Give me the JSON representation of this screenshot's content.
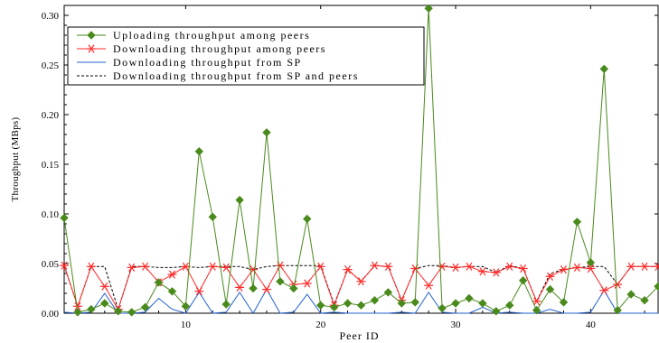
{
  "chart_data": {
    "type": "line",
    "title": "",
    "xlabel": "Peer ID",
    "ylabel": "Throughput (MBps)",
    "xlim": [
      1,
      45
    ],
    "ylim": [
      0,
      0.31
    ],
    "x_ticks": [
      10,
      20,
      30,
      40
    ],
    "y_ticks": [
      0.0,
      0.05,
      0.1,
      0.15,
      0.2,
      0.25,
      0.3
    ],
    "y_tick_labels": [
      "0.00",
      "0.05",
      "0.10",
      "0.15",
      "0.20",
      "0.25",
      "0.30"
    ],
    "legend_position": "top-left",
    "grid": false,
    "x": [
      1,
      2,
      3,
      4,
      5,
      6,
      7,
      8,
      9,
      10,
      11,
      12,
      13,
      14,
      15,
      16,
      17,
      18,
      19,
      20,
      21,
      22,
      23,
      24,
      25,
      26,
      27,
      28,
      29,
      30,
      31,
      32,
      33,
      34,
      35,
      36,
      37,
      38,
      39,
      40,
      41,
      42,
      43,
      44,
      45
    ],
    "series": [
      {
        "name": "Uploading throughput among peers",
        "color": "#4a8a1c",
        "style": "solid",
        "marker": "diamond",
        "values": [
          0.096,
          0.001,
          0.004,
          0.01,
          0.002,
          0.001,
          0.006,
          0.031,
          0.022,
          0.007,
          0.163,
          0.097,
          0.009,
          0.114,
          0.025,
          0.182,
          0.032,
          0.025,
          0.095,
          0.008,
          0.006,
          0.01,
          0.008,
          0.013,
          0.021,
          0.01,
          0.011,
          0.307,
          0.005,
          0.01,
          0.015,
          0.01,
          0.002,
          0.008,
          0.033,
          0.003,
          0.024,
          0.011,
          0.092,
          0.051,
          0.246,
          0.003,
          0.019,
          0.013,
          0.027
        ]
      },
      {
        "name": "Downloading throughput among peers",
        "color": "#ff2a2a",
        "style": "solid",
        "marker": "star",
        "values": [
          0.048,
          0.007,
          0.047,
          0.027,
          0.004,
          0.046,
          0.047,
          0.031,
          0.039,
          0.047,
          0.022,
          0.047,
          0.046,
          0.026,
          0.044,
          0.024,
          0.048,
          0.029,
          0.03,
          0.047,
          0.008,
          0.044,
          0.032,
          0.048,
          0.047,
          0.013,
          0.045,
          0.028,
          0.047,
          0.046,
          0.047,
          0.042,
          0.041,
          0.047,
          0.045,
          0.012,
          0.037,
          0.044,
          0.046,
          0.045,
          0.023,
          0.029,
          0.047,
          0.047,
          0.047
        ]
      },
      {
        "name": "Downloading throughput from SP",
        "color": "#1f5fd1",
        "style": "solid",
        "marker": "none",
        "values": [
          0.001,
          0.0,
          0.001,
          0.02,
          0.0,
          0.0,
          0.001,
          0.015,
          0.004,
          0.0,
          0.021,
          0.0,
          0.001,
          0.021,
          0.0,
          0.024,
          0.0,
          0.001,
          0.019,
          0.0,
          0.001,
          0.0,
          0.0,
          0.0,
          0.0,
          0.001,
          0.0,
          0.021,
          0.001,
          0.0,
          0.0,
          0.006,
          0.0,
          0.001,
          0.0,
          0.0,
          0.004,
          0.0,
          0.0,
          0.001,
          0.023,
          0.0,
          0.0,
          0.0,
          0.0
        ]
      },
      {
        "name": "Downloading throughput from SP and peers",
        "color": "#000000",
        "style": "dashed",
        "marker": "none",
        "values": [
          0.048,
          0.007,
          0.047,
          0.047,
          0.004,
          0.047,
          0.047,
          0.046,
          0.046,
          0.047,
          0.046,
          0.047,
          0.047,
          0.047,
          0.044,
          0.047,
          0.048,
          0.048,
          0.048,
          0.048,
          0.009,
          0.044,
          0.032,
          0.048,
          0.047,
          0.013,
          0.045,
          0.048,
          0.048,
          0.046,
          0.047,
          0.047,
          0.041,
          0.048,
          0.045,
          0.012,
          0.04,
          0.044,
          0.046,
          0.047,
          0.047,
          0.029,
          0.047,
          0.047,
          0.047
        ]
      }
    ]
  }
}
